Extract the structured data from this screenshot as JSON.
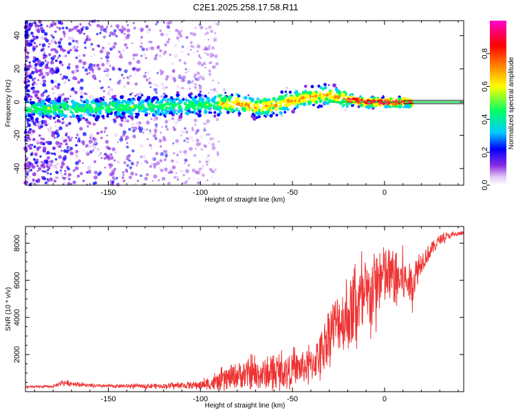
{
  "title": "C2E1.2025.258.17.58.R11",
  "chart_data": [
    {
      "type": "heatmap",
      "name": "spectrogram",
      "xlabel": "Height of straight line (km)",
      "ylabel": "Frequency (Hz)",
      "xlim": [
        -195,
        43
      ],
      "ylim": [
        -50,
        49
      ],
      "xticks": [
        -150,
        -100,
        -50,
        0
      ],
      "yticks": [
        -40,
        -20,
        0,
        20,
        40
      ],
      "colorbar": {
        "label": "Normalized spectral amplitude",
        "range": [
          0,
          1
        ],
        "ticks": [
          0.0,
          0.2,
          0.4,
          0.6,
          0.8
        ],
        "colormap": [
          "#ffffff",
          "#e3c8f5",
          "#8a2be2",
          "#0000ff",
          "#00ccff",
          "#00ff66",
          "#ffff00",
          "#ff8800",
          "#ff0000",
          "#ff00cc"
        ]
      },
      "ridge": {
        "description": "frequency centroid of main signal vs height",
        "x": [
          -195,
          -170,
          -150,
          -130,
          -110,
          -100,
          -90,
          -80,
          -70,
          -60,
          -50,
          -40,
          -35,
          -30,
          -20,
          -10,
          0,
          10,
          20,
          43
        ],
        "y": [
          -4,
          -4,
          -3,
          -3,
          -2,
          -2,
          -1,
          -1,
          -3,
          -2,
          1,
          3,
          4,
          4,
          2,
          0,
          0,
          0,
          0,
          0
        ]
      }
    },
    {
      "type": "line",
      "name": "snr",
      "xlabel": "Height of straight line (km)",
      "ylabel": "SNR (10 * v/v)",
      "xlim": [
        -195,
        43
      ],
      "ylim": [
        0,
        8900
      ],
      "xticks": [
        -150,
        -100,
        -50,
        0
      ],
      "yticks": [
        2000,
        4000,
        6000,
        8000
      ],
      "color": "#ee3333",
      "envelope": {
        "x": [
          -195,
          -180,
          -175,
          -160,
          -150,
          -120,
          -100,
          -90,
          -80,
          -70,
          -60,
          -50,
          -40,
          -35,
          -30,
          -25,
          -20,
          -15,
          -10,
          -5,
          0,
          5,
          10,
          15,
          20,
          25,
          30,
          35,
          40,
          43
        ],
        "mean": [
          250,
          280,
          500,
          320,
          300,
          310,
          360,
          500,
          900,
          900,
          1000,
          1200,
          1400,
          2000,
          3300,
          3800,
          4000,
          4800,
          4800,
          5800,
          6200,
          6200,
          6000,
          5800,
          7000,
          7600,
          8200,
          8400,
          8500,
          8550
        ],
        "spread": [
          60,
          60,
          150,
          80,
          80,
          120,
          200,
          450,
          700,
          800,
          800,
          800,
          900,
          1100,
          1400,
          1600,
          1800,
          2000,
          2000,
          1800,
          1700,
          1500,
          1200,
          1000,
          600,
          400,
          250,
          150,
          120,
          100
        ]
      }
    }
  ]
}
